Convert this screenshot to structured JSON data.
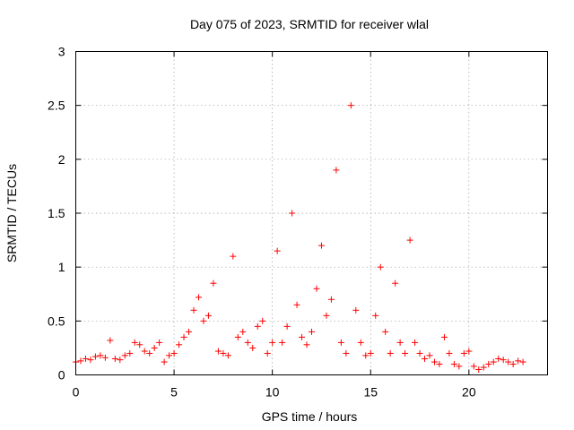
{
  "chart_data": {
    "type": "scatter",
    "title": "Day 075 of 2023, SRMTID for receiver wlal",
    "xlabel": "GPS time / hours",
    "ylabel": "SRMTID / TECUs",
    "xlim": [
      0,
      24
    ],
    "ylim": [
      0,
      3
    ],
    "xticks": [
      0,
      5,
      10,
      15,
      20
    ],
    "xtick_labels": [
      "0",
      "5",
      "10",
      "15",
      "20"
    ],
    "yticks": [
      0,
      0.5,
      1,
      1.5,
      2,
      2.5,
      3
    ],
    "ytick_labels": [
      "0",
      "0.5",
      "1",
      "1.5",
      "2",
      "2.5",
      "3"
    ],
    "grid": true,
    "marker": "+",
    "color": "#ff0000",
    "series": [
      {
        "name": "SRMTID",
        "x": [
          0.0,
          0.25,
          0.5,
          0.75,
          1.0,
          1.25,
          1.5,
          1.75,
          2.0,
          2.25,
          2.5,
          2.75,
          3.0,
          3.25,
          3.5,
          3.75,
          4.0,
          4.25,
          4.5,
          4.75,
          5.0,
          5.25,
          5.5,
          5.75,
          6.0,
          6.25,
          6.5,
          6.75,
          7.0,
          7.25,
          7.5,
          7.75,
          8.0,
          8.25,
          8.5,
          8.75,
          9.0,
          9.25,
          9.5,
          9.75,
          10.0,
          10.25,
          10.5,
          10.75,
          11.0,
          11.25,
          11.5,
          11.75,
          12.0,
          12.25,
          12.5,
          12.75,
          13.0,
          13.25,
          13.5,
          13.75,
          14.0,
          14.25,
          14.5,
          14.75,
          15.0,
          15.25,
          15.5,
          15.75,
          16.0,
          16.25,
          16.5,
          16.75,
          17.0,
          17.25,
          17.5,
          17.75,
          18.0,
          18.25,
          18.5,
          18.75,
          19.0,
          19.25,
          19.5,
          19.75,
          20.0,
          20.25,
          20.5,
          20.75,
          21.0,
          21.25,
          21.5,
          21.75,
          22.0,
          22.25,
          22.5,
          22.75
        ],
        "values": [
          0.12,
          0.13,
          0.15,
          0.14,
          0.17,
          0.18,
          0.16,
          0.32,
          0.15,
          0.14,
          0.18,
          0.2,
          0.3,
          0.28,
          0.22,
          0.2,
          0.25,
          0.3,
          0.12,
          0.18,
          0.2,
          0.28,
          0.35,
          0.4,
          0.6,
          0.72,
          0.5,
          0.55,
          0.85,
          0.22,
          0.2,
          0.18,
          1.1,
          0.35,
          0.4,
          0.3,
          0.25,
          0.45,
          0.5,
          0.2,
          0.3,
          1.15,
          0.3,
          0.45,
          1.5,
          0.65,
          0.35,
          0.28,
          0.4,
          0.8,
          1.2,
          0.55,
          0.7,
          1.9,
          0.3,
          0.2,
          2.5,
          0.6,
          0.3,
          0.18,
          0.2,
          0.55,
          1.0,
          0.4,
          0.2,
          0.85,
          0.3,
          0.2,
          1.25,
          0.3,
          0.2,
          0.15,
          0.18,
          0.12,
          0.1,
          0.35,
          0.2,
          0.1,
          0.08,
          0.2,
          0.22,
          0.08,
          0.05,
          0.07,
          0.1,
          0.12,
          0.15,
          0.14,
          0.12,
          0.1,
          0.13,
          0.12
        ]
      }
    ]
  }
}
